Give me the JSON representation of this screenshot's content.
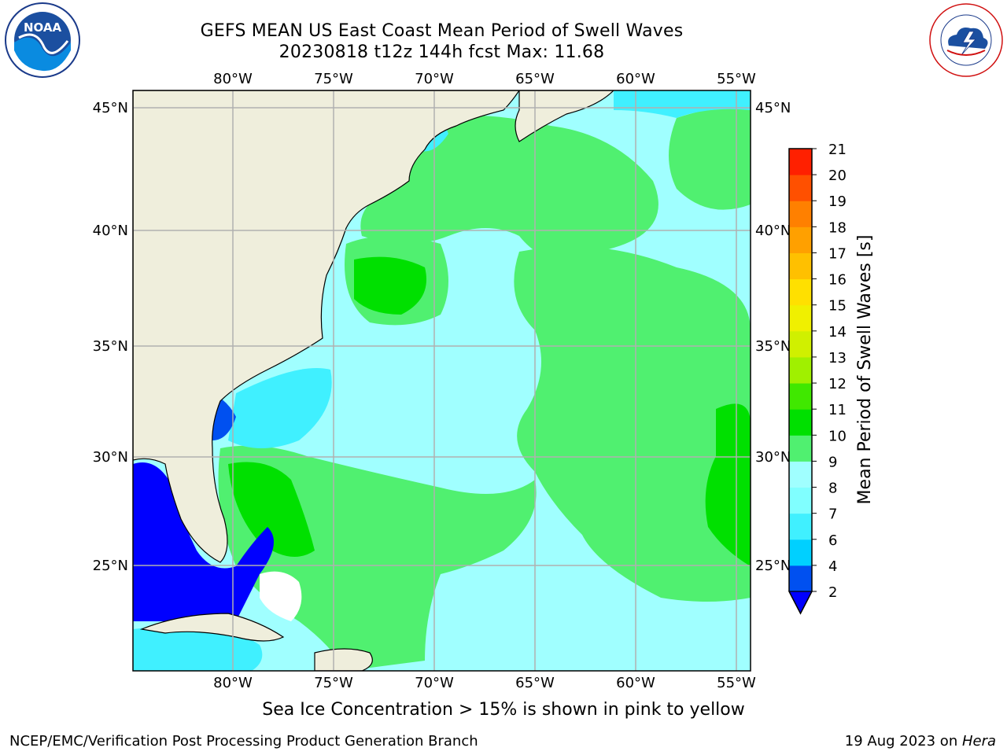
{
  "header": {
    "title_line1": "GEFS MEAN US East Coast Mean Period of Swell Waves",
    "title_line2": "20230818 t12z 144h fcst   Max: 11.68"
  },
  "map": {
    "lon_labels": [
      "80°W",
      "75°W",
      "70°W",
      "65°W",
      "60°W",
      "55°W"
    ],
    "lat_labels": [
      "45°N",
      "40°N",
      "35°N",
      "30°N",
      "25°N"
    ],
    "colors": {
      "land": "#efeedc",
      "grid": "#b0b0b0",
      "ice_free_border": "#000000"
    }
  },
  "colorbar": {
    "label": "Mean Period of Swell Waves [s]",
    "tick_labels": [
      "2",
      "4",
      "6",
      "7",
      "8",
      "9",
      "10",
      "11",
      "12",
      "13",
      "14",
      "15",
      "16",
      "17",
      "18",
      "19",
      "20",
      "21"
    ],
    "colors": [
      "#0050f0",
      "#00d0ff",
      "#40f0ff",
      "#80ffff",
      "#a0ffff",
      "#50f070",
      "#00e000",
      "#40e800",
      "#a0f000",
      "#d0f000",
      "#f0f000",
      "#ffe000",
      "#ffc000",
      "#ffa000",
      "#ff8000",
      "#ff5000",
      "#ff2000",
      "#ff0000"
    ],
    "under_color": "#0000ff"
  },
  "caption": "Sea Ice Concentration > 15% is shown in pink to yellow",
  "footer": {
    "left": "NCEP/EMC/Verification Post Processing Product Generation Branch",
    "right_date": "19 Aug 2023 on ",
    "right_host": "Hera"
  },
  "logos": {
    "noaa_text": "NOAA",
    "nws_text": "NATIONAL WEATHER SERVICE"
  }
}
